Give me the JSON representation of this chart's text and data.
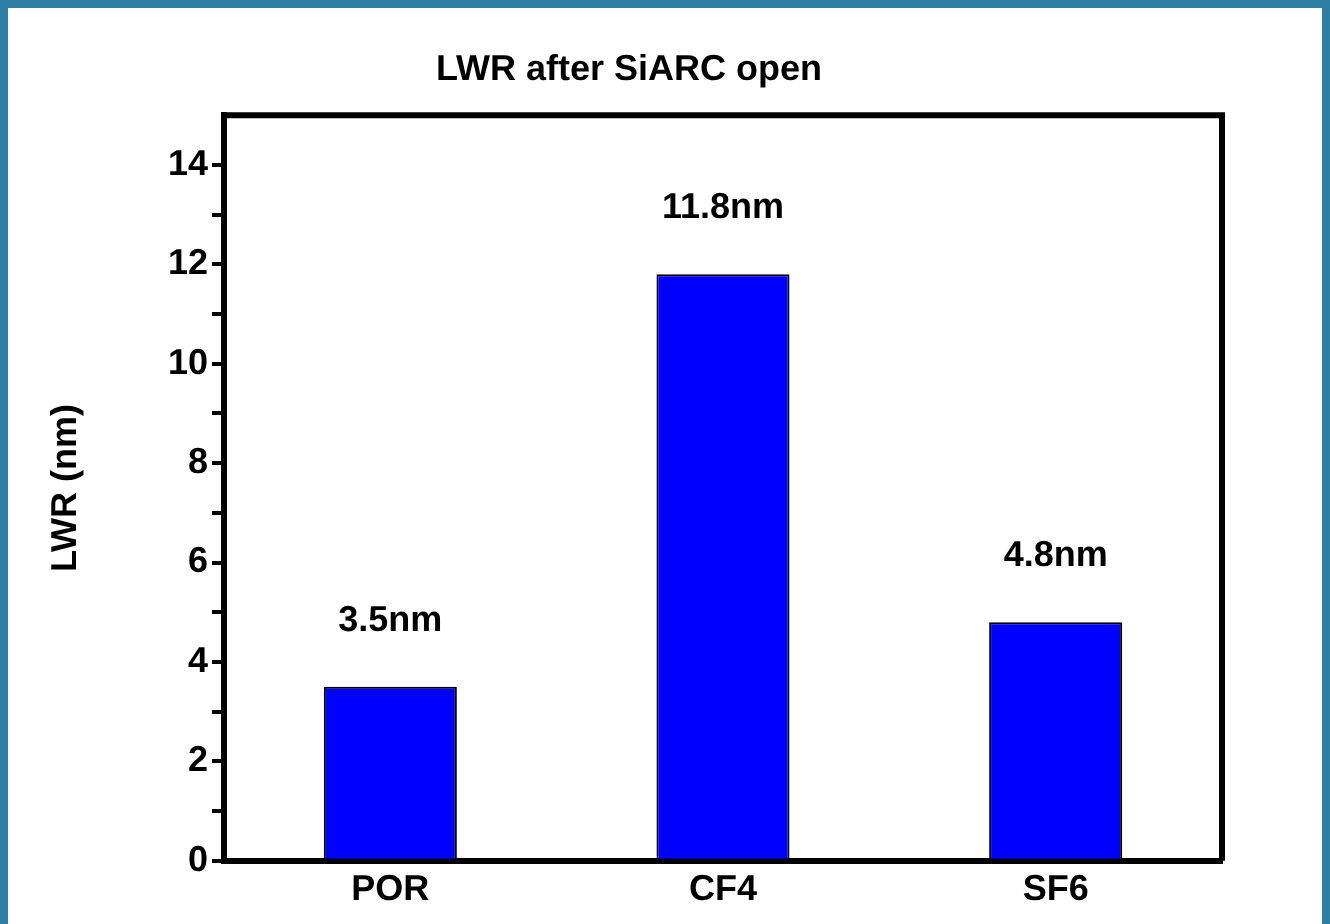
{
  "chart_data": {
    "type": "bar",
    "title": "LWR after SiARC open",
    "ylabel": "LWR (nm)",
    "categories": [
      "POR",
      "CF4",
      "SF6"
    ],
    "values": [
      3.5,
      11.8,
      4.8
    ],
    "value_labels": [
      "3.5nm",
      "11.8nm",
      "4.8nm"
    ],
    "color": "#0000ff",
    "ylim": [
      0,
      15
    ],
    "yticks": [
      0,
      {
        "value": 1,
        "label": null
      },
      2,
      {
        "value": 3,
        "label": null
      },
      4,
      {
        "value": 5,
        "label": null
      },
      6,
      {
        "value": 7,
        "label": null
      },
      8,
      {
        "value": 9,
        "label": null
      },
      10,
      {
        "value": 11,
        "label": null
      },
      12,
      {
        "value": 13,
        "label": null
      },
      14
    ],
    "grid": false,
    "legend": false
  }
}
